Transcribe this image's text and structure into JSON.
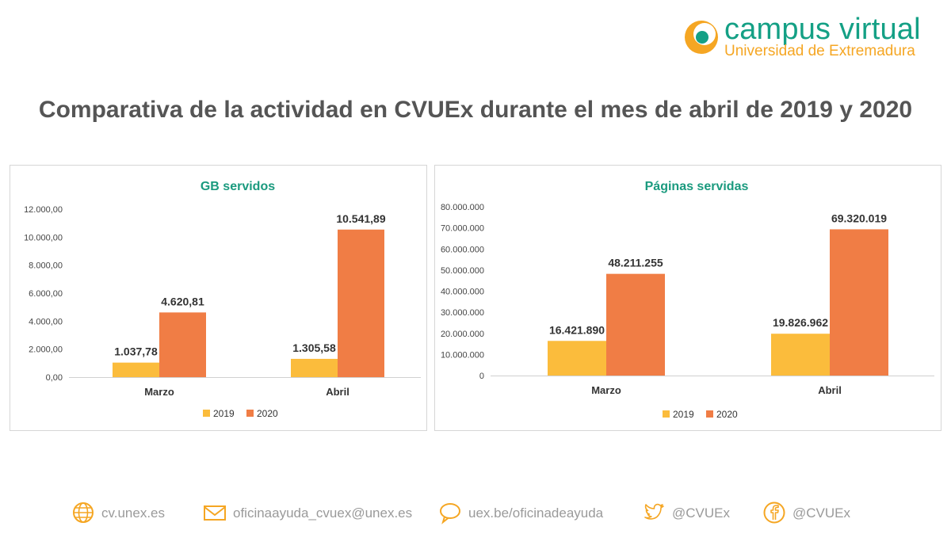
{
  "logo": {
    "title": "campus virtual",
    "subtitle": "Universidad de Extremadura"
  },
  "title": "Comparativa de la actividad en CVUEx durante el mes de abril de 2019 y 2020",
  "colors": {
    "s2019": "#fbbc3c",
    "s2020": "#f07d45",
    "accent": "#1a9a7e",
    "logoGreen": "#14a085",
    "logoOrange": "#f5a623"
  },
  "chart_data": [
    {
      "type": "bar",
      "title": "GB servidos",
      "categories": [
        "Marzo",
        "Abril"
      ],
      "series": [
        {
          "name": "2019",
          "values": [
            1037.78,
            1305.58
          ],
          "labels": [
            "1.037,78",
            "1.305,58"
          ]
        },
        {
          "name": "2020",
          "values": [
            4620.81,
            10541.89
          ],
          "labels": [
            "4.620,81",
            "10.541,89"
          ]
        }
      ],
      "ylim": [
        0,
        12000
      ],
      "yticks": [
        0,
        2000,
        4000,
        6000,
        8000,
        10000,
        12000
      ],
      "ytick_labels": [
        "0,00",
        "2.000,00",
        "4.000,00",
        "6.000,00",
        "8.000,00",
        "10.000,00",
        "12.000,00"
      ],
      "legend": "bottom",
      "grid": false
    },
    {
      "type": "bar",
      "title": "Páginas servidas",
      "categories": [
        "Marzo",
        "Abril"
      ],
      "series": [
        {
          "name": "2019",
          "values": [
            16421890,
            19826962
          ],
          "labels": [
            "16.421.890",
            "19.826.962"
          ]
        },
        {
          "name": "2020",
          "values": [
            48211255,
            69320019
          ],
          "labels": [
            "48.211.255",
            "69.320.019"
          ]
        }
      ],
      "ylim": [
        0,
        80000000
      ],
      "yticks": [
        0,
        10000000,
        20000000,
        30000000,
        40000000,
        50000000,
        60000000,
        70000000,
        80000000
      ],
      "ytick_labels": [
        "0",
        "10.000.000",
        "20.000.000",
        "30.000.000",
        "40.000.000",
        "50.000.000",
        "60.000.000",
        "70.000.000",
        "80.000.000"
      ],
      "legend": "bottom",
      "grid": false
    }
  ],
  "footer": [
    {
      "icon": "globe-icon",
      "text": "cv.unex.es"
    },
    {
      "icon": "envelope-icon",
      "text": "oficinaayuda_cvuex@unex.es"
    },
    {
      "icon": "chat-bubble-icon",
      "text": "uex.be/oficinadeayuda"
    },
    {
      "icon": "twitter-icon",
      "text": "@CVUEx"
    },
    {
      "icon": "facebook-icon",
      "text": "@CVUEx"
    }
  ]
}
